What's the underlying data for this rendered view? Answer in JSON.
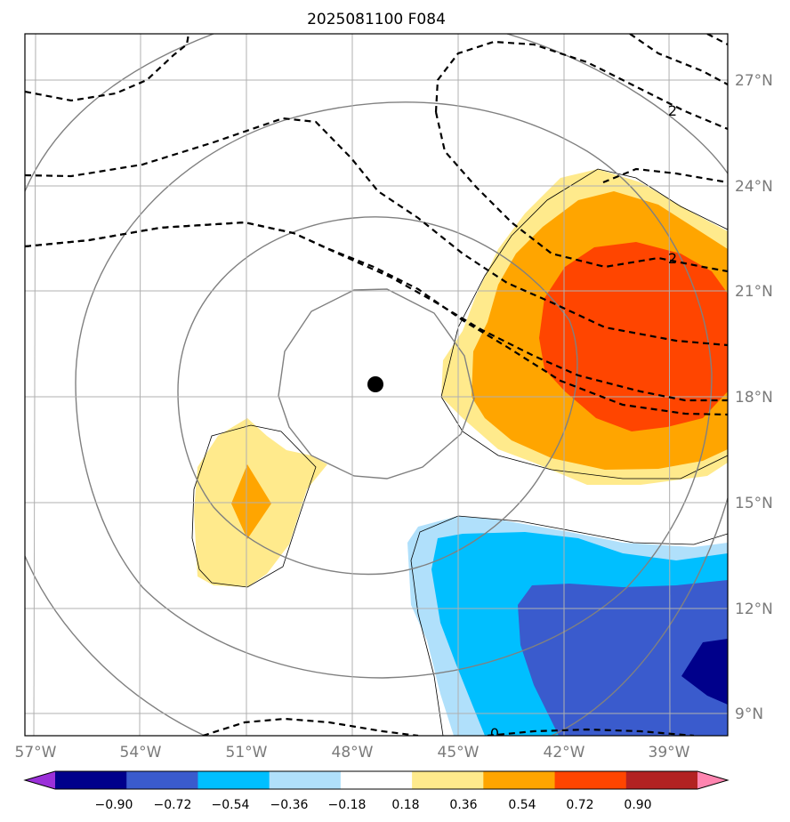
{
  "title": "2025081100 F084",
  "axes": {
    "x_ticks": [
      "57°W",
      "54°W",
      "51°W",
      "48°W",
      "45°W",
      "42°W",
      "39°W"
    ],
    "y_ticks": [
      "27°N",
      "24°N",
      "21°N",
      "18°N",
      "15°N",
      "12°N",
      "9°N"
    ],
    "grid": true
  },
  "storm_center": {
    "lon": -47.7,
    "lat": 18.4
  },
  "contour_labels": [
    {
      "text": "2"
    },
    {
      "text": "2"
    },
    {
      "text": "0"
    }
  ],
  "colorbar": {
    "labels": [
      "−0.90",
      "−0.72",
      "−0.54",
      "−0.36",
      "−0.18",
      "0.18",
      "0.36",
      "0.54",
      "0.72",
      "0.90"
    ],
    "colors": [
      "#9b30d9",
      "#00008b",
      "#3a5bcd",
      "#00bfff",
      "#b0e0fb",
      "#ffffff",
      "#ffea8c",
      "#ffa500",
      "#ff4500",
      "#b22222",
      "#ff85b0"
    ],
    "extend": "both"
  }
}
